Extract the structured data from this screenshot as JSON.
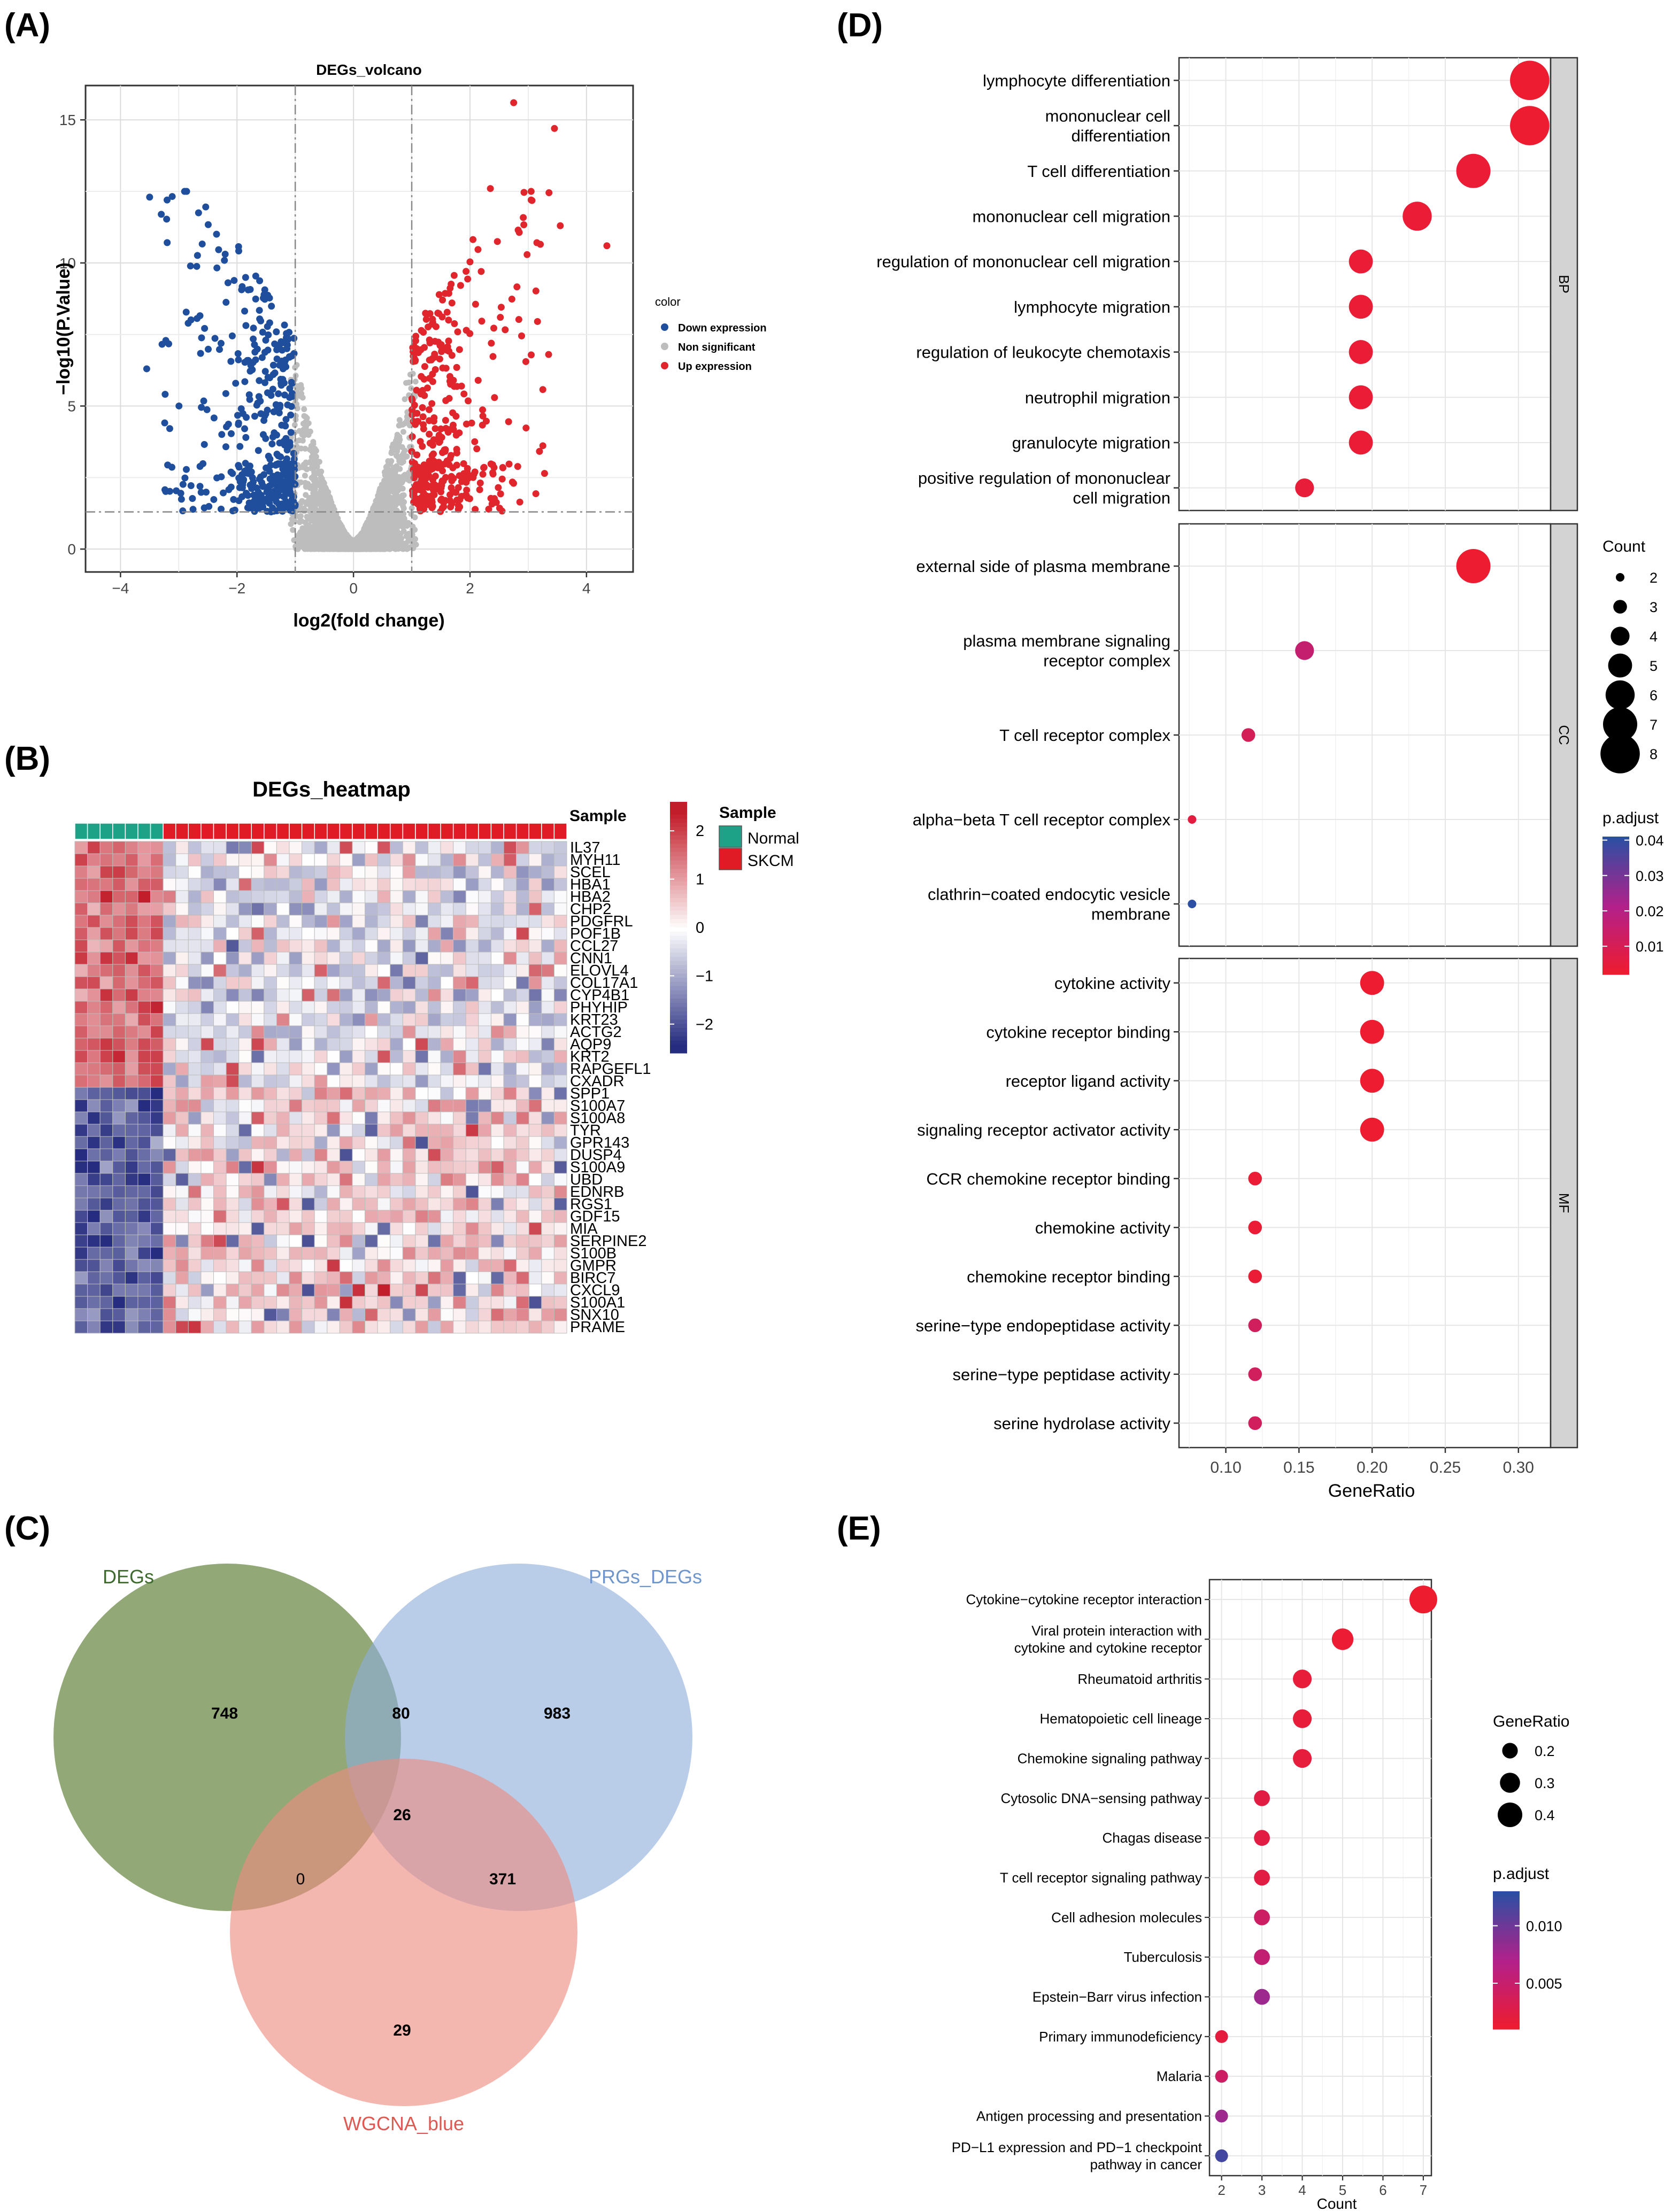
{
  "panels": {
    "a": "(A)",
    "b": "(B)",
    "c": "(C)",
    "d": "(D)",
    "e": "(E)"
  },
  "colors": {
    "down": "#1f4e9c",
    "ns": "#bdbdbd",
    "up": "#e0262c",
    "heat_low": "#262c7f",
    "heat_mid": "#ffffff",
    "heat_high": "#c21d2a",
    "normal": "#1ea287",
    "skcm": "#e01b25",
    "venn_degs": "#6e8b4a",
    "venn_prgs": "#8eaedc",
    "venn_wgcna": "#ee8a80",
    "padj_low": "#f01c2c",
    "padj_high": "#2c4fa3",
    "strip_bg": "#d3d3d3",
    "panel_bg": "#ffffff",
    "grid": "#e6e6e6"
  },
  "chart_data": [
    {
      "id": "volcano",
      "type": "scatter",
      "title": "DEGs_volcano",
      "xlabel": "log2(fold change)",
      "ylabel": "−log10(P.Value)",
      "xlim": [
        -4.6,
        4.8
      ],
      "ylim": [
        -0.8,
        16.2
      ],
      "xticks": [
        -4,
        -2,
        0,
        2,
        4
      ],
      "xtick_labels": [
        "−4",
        "−2",
        "0",
        "2",
        "4"
      ],
      "yticks": [
        0,
        5,
        10,
        15
      ],
      "ytick_labels": [
        "0",
        "5",
        "10",
        "15"
      ],
      "fc_threshold": [
        -1,
        1
      ],
      "p_threshold_y": 1.3,
      "legend_title": "color",
      "legend": [
        "Down expression",
        "Non significant",
        "Up expression"
      ],
      "highlight_points": [
        {
          "x": 2.75,
          "y": 15.6
        },
        {
          "x": 3.45,
          "y": 14.7
        },
        {
          "x": 4.35,
          "y": 10.6
        },
        {
          "x": 3.55,
          "y": 11.3
        },
        {
          "x": -2.9,
          "y": 12.5
        },
        {
          "x": -3.5,
          "y": 12.3
        },
        {
          "x": -3.3,
          "y": 11.7
        },
        {
          "x": -3.2,
          "y": 12.2
        },
        {
          "x": -3.55,
          "y": 6.3
        },
        {
          "x": 3.35,
          "y": 6.8
        },
        {
          "x": 2.35,
          "y": 12.6
        },
        {
          "x": 3.05,
          "y": 12.2
        }
      ],
      "n_down": 420,
      "n_up": 390,
      "n_ns": 3400
    },
    {
      "id": "heatmap",
      "type": "heatmap",
      "title": "DEGs_heatmap",
      "annotation_label": "Sample",
      "groups": [
        {
          "name": "Normal",
          "n": 7
        },
        {
          "name": "SKCM",
          "n": 32
        }
      ],
      "scale_ticks": [
        2,
        1,
        0,
        -1,
        -2
      ],
      "scale_tick_labels": [
        "2",
        "1",
        "0",
        "−1",
        "−2"
      ],
      "legend_title": "Sample",
      "genes_up_in_normal": [
        "IL37",
        "MYH11",
        "SCEL",
        "HBA1",
        "HBA2",
        "CHP2",
        "PDGFRL",
        "POF1B",
        "CCL27",
        "CNN1",
        "ELOVL4",
        "COL17A1",
        "CYP4B1",
        "PHYHIP",
        "KRT23",
        "ACTG2",
        "AQP9",
        "KRT2",
        "RAPGEFL1",
        "CXADR"
      ],
      "genes_up_in_skcm": [
        "SPP1",
        "S100A7",
        "S100A8",
        "TYR",
        "GPR143",
        "DUSP4",
        "S100A9",
        "UBD",
        "EDNRB",
        "RGS1",
        "GDF15",
        "MIA",
        "SERPINE2",
        "S100B",
        "GMPR",
        "BIRC7",
        "CXCL9",
        "S100A1",
        "SNX10",
        "PRAME"
      ]
    },
    {
      "id": "venn",
      "type": "venn",
      "sets": [
        "DEGs",
        "PRGs_DEGs",
        "WGCNA_blue"
      ],
      "regions": {
        "degs_only": "748",
        "prgs_only": "983",
        "wgcna_only": "29",
        "degs_prgs": "80",
        "degs_wgcna": "0",
        "prgs_wgcna": "371",
        "all": "26"
      }
    },
    {
      "id": "go",
      "type": "scatter",
      "xlabel": "GeneRatio",
      "xlim": [
        0.068,
        0.322
      ],
      "xticks": [
        0.1,
        0.15,
        0.2,
        0.25,
        0.3
      ],
      "xtick_labels": [
        "0.10",
        "0.15",
        "0.20",
        "0.25",
        "0.30"
      ],
      "size_legend_title": "Count",
      "size_legend": [
        "2",
        "3",
        "4",
        "5",
        "6",
        "7",
        "8"
      ],
      "color_legend_title": "p.adjust",
      "color_legend_ticks": [
        0.04,
        0.03,
        0.02,
        0.01
      ],
      "color_legend_labels": [
        "0.04",
        "0.03",
        "0.02",
        "0.01"
      ],
      "color_range": [
        0.002,
        0.041
      ],
      "facets": [
        {
          "name": "BP",
          "terms": [
            {
              "label": [
                "lymphocyte differentiation"
              ],
              "x": 0.3077,
              "count": 8,
              "padj": 0.003
            },
            {
              "label": [
                "mononuclear cell",
                "differentiation"
              ],
              "x": 0.3077,
              "count": 8,
              "padj": 0.003
            },
            {
              "label": [
                "T cell differentiation"
              ],
              "x": 0.2692,
              "count": 7,
              "padj": 0.004
            },
            {
              "label": [
                "mononuclear cell migration"
              ],
              "x": 0.2308,
              "count": 6,
              "padj": 0.004
            },
            {
              "label": [
                "regulation of mononuclear cell migration"
              ],
              "x": 0.1923,
              "count": 5,
              "padj": 0.004
            },
            {
              "label": [
                "lymphocyte migration"
              ],
              "x": 0.1923,
              "count": 5,
              "padj": 0.004
            },
            {
              "label": [
                "regulation of leukocyte chemotaxis"
              ],
              "x": 0.1923,
              "count": 5,
              "padj": 0.004
            },
            {
              "label": [
                "neutrophil migration"
              ],
              "x": 0.1923,
              "count": 5,
              "padj": 0.004
            },
            {
              "label": [
                "granulocyte migration"
              ],
              "x": 0.1923,
              "count": 5,
              "padj": 0.004
            },
            {
              "label": [
                "positive regulation of mononuclear",
                "cell migration"
              ],
              "x": 0.1538,
              "count": 4,
              "padj": 0.005
            }
          ]
        },
        {
          "name": "CC",
          "terms": [
            {
              "label": [
                "external side of plasma membrane"
              ],
              "x": 0.2692,
              "count": 7,
              "padj": 0.003
            },
            {
              "label": [
                "plasma membrane signaling",
                "receptor complex"
              ],
              "x": 0.1538,
              "count": 4,
              "padj": 0.016
            },
            {
              "label": [
                "T cell receptor complex"
              ],
              "x": 0.1154,
              "count": 3,
              "padj": 0.011
            },
            {
              "label": [
                "alpha−beta T cell receptor complex"
              ],
              "x": 0.0769,
              "count": 2,
              "padj": 0.006
            },
            {
              "label": [
                "clathrin−coated endocytic vesicle",
                "membrane"
              ],
              "x": 0.0769,
              "count": 2,
              "padj": 0.041
            }
          ]
        },
        {
          "name": "MF",
          "terms": [
            {
              "label": [
                "cytokine activity"
              ],
              "x": 0.2,
              "count": 5,
              "padj": 0.003
            },
            {
              "label": [
                "cytokine receptor binding"
              ],
              "x": 0.2,
              "count": 5,
              "padj": 0.003
            },
            {
              "label": [
                "receptor ligand activity"
              ],
              "x": 0.2,
              "count": 5,
              "padj": 0.003
            },
            {
              "label": [
                "signaling receptor activator activity"
              ],
              "x": 0.2,
              "count": 5,
              "padj": 0.003
            },
            {
              "label": [
                "CCR chemokine receptor binding"
              ],
              "x": 0.12,
              "count": 3,
              "padj": 0.004
            },
            {
              "label": [
                "chemokine activity"
              ],
              "x": 0.12,
              "count": 3,
              "padj": 0.004
            },
            {
              "label": [
                "chemokine receptor binding"
              ],
              "x": 0.12,
              "count": 3,
              "padj": 0.004
            },
            {
              "label": [
                "serine−type endopeptidase activity"
              ],
              "x": 0.12,
              "count": 3,
              "padj": 0.012
            },
            {
              "label": [
                "serine−type peptidase activity"
              ],
              "x": 0.12,
              "count": 3,
              "padj": 0.012
            },
            {
              "label": [
                "serine hydrolase activity"
              ],
              "x": 0.12,
              "count": 3,
              "padj": 0.012
            }
          ]
        }
      ]
    },
    {
      "id": "kegg",
      "type": "scatter",
      "xlabel": "Count",
      "xlim": [
        1.7,
        7.2
      ],
      "xticks": [
        2,
        3,
        4,
        5,
        6,
        7
      ],
      "xtick_labels": [
        "2",
        "3",
        "4",
        "5",
        "6",
        "7"
      ],
      "size_legend_title": "GeneRatio",
      "size_legend": [
        "0.2",
        "0.3",
        "0.4"
      ],
      "color_legend_title": "p.adjust",
      "color_legend_ticks": [
        0.01,
        0.005
      ],
      "color_legend_labels": [
        "0.010",
        "0.005"
      ],
      "color_range": [
        0.001,
        0.013
      ],
      "terms": [
        {
          "label": [
            "Cytokine−cytokine receptor interaction"
          ],
          "count": 7,
          "ratio": 0.44,
          "padj": 0.0012
        },
        {
          "label": [
            "Viral protein interaction with",
            "cytokine and cytokine receptor"
          ],
          "count": 5,
          "ratio": 0.31,
          "padj": 0.0015
        },
        {
          "label": [
            "Rheumatoid arthritis"
          ],
          "count": 4,
          "ratio": 0.25,
          "padj": 0.0018
        },
        {
          "label": [
            "Hematopoietic cell lineage"
          ],
          "count": 4,
          "ratio": 0.25,
          "padj": 0.0018
        },
        {
          "label": [
            "Chemokine signaling pathway"
          ],
          "count": 4,
          "ratio": 0.25,
          "padj": 0.002
        },
        {
          "label": [
            "Cytosolic DNA−sensing pathway"
          ],
          "count": 3,
          "ratio": 0.19,
          "padj": 0.0025
        },
        {
          "label": [
            "Chagas disease"
          ],
          "count": 3,
          "ratio": 0.19,
          "padj": 0.0025
        },
        {
          "label": [
            "T cell receptor signaling pathway"
          ],
          "count": 3,
          "ratio": 0.19,
          "padj": 0.0025
        },
        {
          "label": [
            "Cell adhesion molecules"
          ],
          "count": 3,
          "ratio": 0.19,
          "padj": 0.0045
        },
        {
          "label": [
            "Tuberculosis"
          ],
          "count": 3,
          "ratio": 0.19,
          "padj": 0.0055
        },
        {
          "label": [
            "Epstein−Barr virus infection"
          ],
          "count": 3,
          "ratio": 0.19,
          "padj": 0.008
        },
        {
          "label": [
            "Primary immunodeficiency"
          ],
          "count": 2,
          "ratio": 0.125,
          "padj": 0.0022
        },
        {
          "label": [
            "Malaria"
          ],
          "count": 2,
          "ratio": 0.125,
          "padj": 0.0045
        },
        {
          "label": [
            "Antigen processing and presentation"
          ],
          "count": 2,
          "ratio": 0.125,
          "padj": 0.008
        },
        {
          "label": [
            "PD−L1 expression and PD−1 checkpoint",
            "pathway in cancer"
          ],
          "count": 2,
          "ratio": 0.125,
          "padj": 0.012
        }
      ]
    }
  ]
}
